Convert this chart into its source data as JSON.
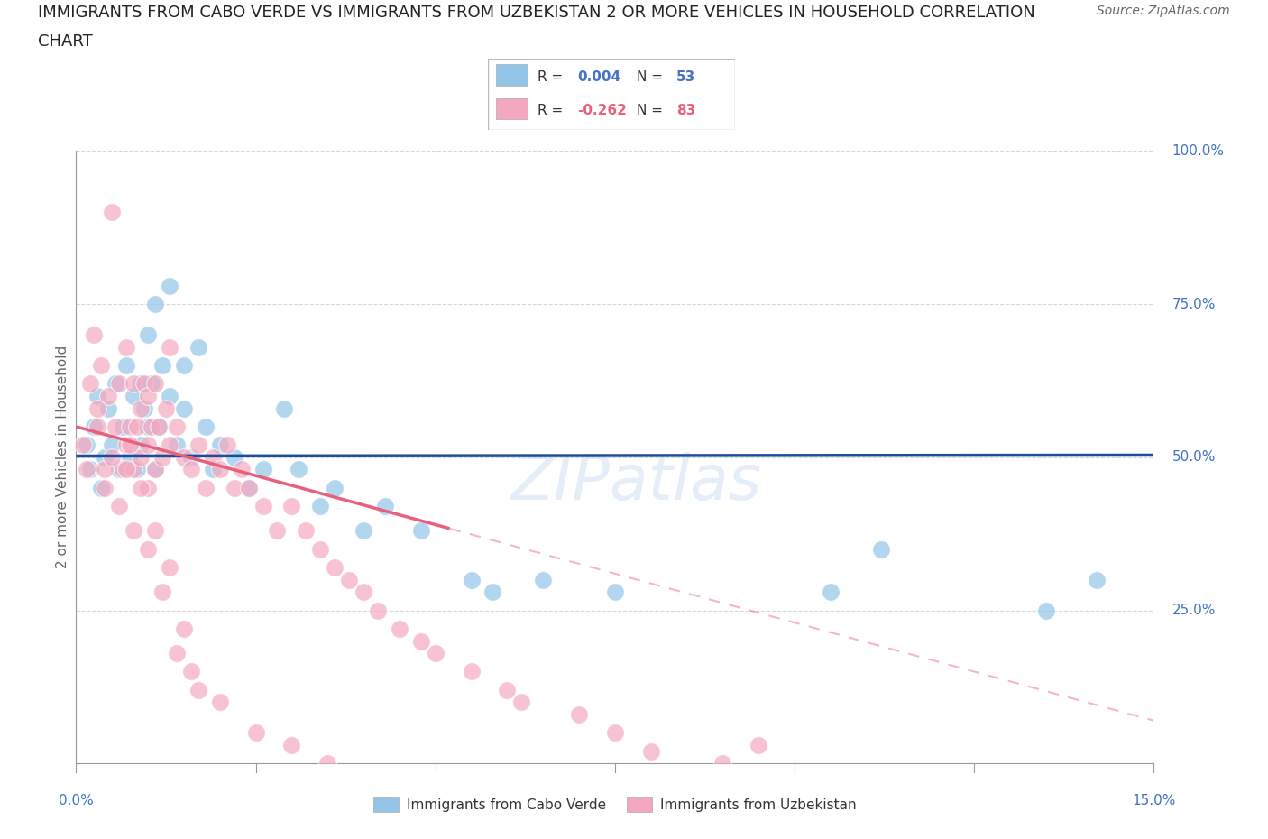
{
  "title_line1": "IMMIGRANTS FROM CABO VERDE VS IMMIGRANTS FROM UZBEKISTAN 2 OR MORE VEHICLES IN HOUSEHOLD CORRELATION",
  "title_line2": "CHART",
  "source": "Source: ZipAtlas.com",
  "ylabel": "2 or more Vehicles in Household",
  "xlim": [
    0.0,
    15.0
  ],
  "ylim": [
    0.0,
    100.0
  ],
  "watermark": "ZIPatlas",
  "cabo_verde_R": "0.004",
  "cabo_verde_N": "53",
  "uzbekistan_R": "-0.262",
  "uzbekistan_N": "83",
  "cabo_verde_color": "#92C5E8",
  "uzbekistan_color": "#F4A8C0",
  "cabo_verde_line_color": "#1B4F9B",
  "uzbekistan_line_color": "#E8607A",
  "uzbekistan_line_solid_end_x": 5.2,
  "cabo_verde_line_y_intercept": 50.2,
  "cabo_verde_line_slope": 0.01,
  "uzbekistan_line_y_intercept": 55.0,
  "uzbekistan_line_slope": -3.2,
  "background_color": "#ffffff",
  "grid_color": "#cccccc",
  "title_color": "#222222",
  "axis_color": "#4472c4",
  "legend_text_color": "#333333",
  "cabo_verde_points_x": [
    0.15,
    0.2,
    0.25,
    0.3,
    0.35,
    0.4,
    0.45,
    0.5,
    0.55,
    0.6,
    0.65,
    0.7,
    0.75,
    0.8,
    0.85,
    0.9,
    0.95,
    1.0,
    1.05,
    1.1,
    1.15,
    1.2,
    1.3,
    1.4,
    1.5,
    1.6,
    1.7,
    1.8,
    1.9,
    2.0,
    2.2,
    2.4,
    2.6,
    2.9,
    3.1,
    3.4,
    3.6,
    4.0,
    4.3,
    4.8,
    5.5,
    5.8,
    6.5,
    7.5,
    10.5,
    11.2,
    13.5,
    14.2,
    1.0,
    1.1,
    1.3,
    1.5,
    0.9
  ],
  "cabo_verde_points_y": [
    52,
    48,
    55,
    60,
    45,
    50,
    58,
    52,
    62,
    48,
    55,
    65,
    50,
    60,
    48,
    52,
    58,
    55,
    62,
    48,
    55,
    65,
    60,
    52,
    58,
    50,
    68,
    55,
    48,
    52,
    50,
    45,
    48,
    58,
    48,
    42,
    45,
    38,
    42,
    38,
    30,
    28,
    30,
    28,
    28,
    35,
    25,
    30,
    70,
    75,
    78,
    65,
    62
  ],
  "uzbekistan_points_x": [
    0.1,
    0.15,
    0.2,
    0.25,
    0.3,
    0.35,
    0.4,
    0.45,
    0.5,
    0.55,
    0.6,
    0.65,
    0.7,
    0.7,
    0.75,
    0.8,
    0.8,
    0.85,
    0.9,
    0.9,
    0.95,
    1.0,
    1.0,
    1.0,
    1.05,
    1.1,
    1.1,
    1.15,
    1.2,
    1.25,
    1.3,
    1.3,
    1.4,
    1.5,
    1.6,
    1.7,
    1.8,
    1.9,
    2.0,
    2.1,
    2.2,
    2.3,
    2.4,
    2.6,
    2.8,
    3.0,
    3.2,
    3.4,
    3.6,
    3.8,
    4.0,
    4.2,
    4.5,
    4.8,
    5.0,
    5.5,
    6.0,
    6.2,
    7.0,
    7.5,
    8.0,
    9.0,
    9.5,
    0.3,
    0.4,
    0.5,
    0.6,
    0.7,
    0.75,
    0.8,
    0.9,
    1.0,
    1.1,
    1.2,
    1.3,
    1.4,
    1.5,
    1.6,
    1.7,
    2.0,
    2.5,
    3.0,
    3.5
  ],
  "uzbekistan_points_y": [
    52,
    48,
    62,
    70,
    55,
    65,
    48,
    60,
    90,
    55,
    62,
    48,
    52,
    68,
    55,
    48,
    62,
    55,
    50,
    58,
    62,
    52,
    60,
    45,
    55,
    48,
    62,
    55,
    50,
    58,
    52,
    68,
    55,
    50,
    48,
    52,
    45,
    50,
    48,
    52,
    45,
    48,
    45,
    42,
    38,
    42,
    38,
    35,
    32,
    30,
    28,
    25,
    22,
    20,
    18,
    15,
    12,
    10,
    8,
    5,
    2,
    0,
    3,
    58,
    45,
    50,
    42,
    48,
    52,
    38,
    45,
    35,
    38,
    28,
    32,
    18,
    22,
    15,
    12,
    10,
    5,
    3,
    0
  ]
}
